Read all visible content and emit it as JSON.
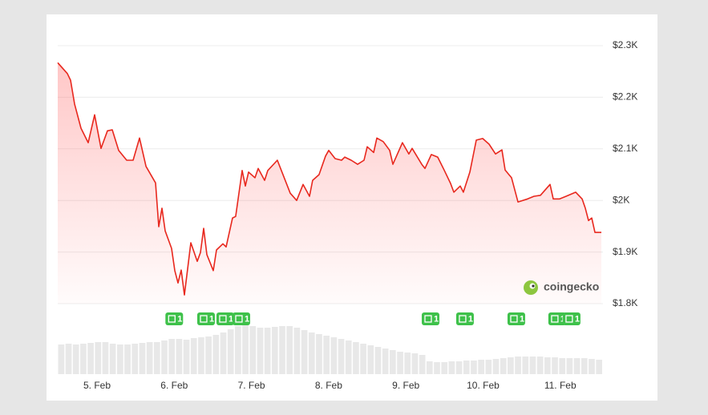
{
  "chart_data": {
    "type": "area",
    "watermark": "coingecko",
    "xlim": [
      4.491,
      11.553
    ],
    "xticks": [
      {
        "value": 5,
        "label": "5. Feb"
      },
      {
        "value": 6,
        "label": "6. Feb"
      },
      {
        "value": 7,
        "label": "7. Feb"
      },
      {
        "value": 8,
        "label": "8. Feb"
      },
      {
        "value": 9,
        "label": "9. Feb"
      },
      {
        "value": 10,
        "label": "10. Feb"
      },
      {
        "value": 11,
        "label": "11. Feb"
      }
    ],
    "ylim": [
      1800,
      2300
    ],
    "yticks": [
      {
        "value": 1800,
        "label": "$1.8K"
      },
      {
        "value": 1900,
        "label": "$1.9K"
      },
      {
        "value": 2000,
        "label": "$2K"
      },
      {
        "value": 2100,
        "label": "$2.1K"
      },
      {
        "value": 2200,
        "label": "$2.2K"
      },
      {
        "value": 2300,
        "label": "$2.3K"
      }
    ],
    "grid": true,
    "series": [
      {
        "color": "#e8281e",
        "x": [
          4.491,
          4.616,
          4.657,
          4.709,
          4.792,
          4.886,
          4.969,
          5.052,
          5.135,
          5.197,
          5.28,
          5.384,
          5.467,
          5.55,
          5.634,
          5.758,
          5.8,
          5.841,
          5.883,
          5.966,
          6.007,
          6.049,
          6.09,
          6.132,
          6.215,
          6.298,
          6.34,
          6.381,
          6.423,
          6.506,
          6.547,
          6.63,
          6.672,
          6.755,
          6.796,
          6.88,
          6.921,
          6.963,
          7.046,
          7.087,
          7.17,
          7.212,
          7.336,
          7.417,
          7.503,
          7.586,
          7.669,
          7.752,
          7.793,
          7.876,
          7.96,
          8.001,
          8.084,
          8.167,
          8.209,
          8.292,
          8.375,
          8.458,
          8.5,
          8.583,
          8.624,
          8.707,
          8.79,
          8.832,
          8.956,
          9.039,
          9.081,
          9.206,
          9.247,
          9.33,
          9.413,
          9.496,
          9.579,
          9.621,
          9.704,
          9.745,
          9.829,
          9.912,
          9.995,
          10.078,
          10.161,
          10.244,
          10.286,
          10.369,
          10.452,
          10.577,
          10.66,
          10.743,
          10.868,
          10.909,
          10.992,
          11.075,
          11.2,
          11.283,
          11.325,
          11.366,
          11.408,
          11.449,
          11.532
        ],
        "values": [
          2267,
          2246,
          2233,
          2187,
          2140,
          2112,
          2166,
          2101,
          2135,
          2137,
          2097,
          2078,
          2078,
          2121,
          2066,
          2034,
          1949,
          1985,
          1941,
          1907,
          1864,
          1840,
          1865,
          1817,
          1918,
          1882,
          1899,
          1946,
          1895,
          1864,
          1904,
          1916,
          1910,
          1966,
          1969,
          2058,
          2028,
          2055,
          2044,
          2062,
          2039,
          2058,
          2078,
          2047,
          2014,
          2000,
          2031,
          2008,
          2039,
          2050,
          2086,
          2097,
          2081,
          2078,
          2084,
          2078,
          2070,
          2078,
          2104,
          2093,
          2121,
          2114,
          2097,
          2070,
          2112,
          2090,
          2101,
          2070,
          2062,
          2089,
          2084,
          2059,
          2033,
          2016,
          2028,
          2016,
          2055,
          2117,
          2120,
          2109,
          2090,
          2098,
          2059,
          2044,
          1997,
          2003,
          2008,
          2010,
          2031,
          2003,
          2003,
          2008,
          2016,
          2003,
          1985,
          1961,
          1966,
          1938,
          1938
        ]
      }
    ],
    "volume_ylim": [
      0,
      65
    ],
    "volume_values": [
      37,
      38,
      37,
      38,
      39,
      40,
      40,
      38,
      37,
      37,
      38,
      39,
      40,
      40,
      42,
      44,
      44,
      43,
      45,
      46,
      47,
      49,
      52,
      56,
      60,
      61,
      60,
      58,
      58,
      59,
      60,
      60,
      58,
      55,
      52,
      50,
      48,
      46,
      44,
      42,
      40,
      38,
      36,
      34,
      32,
      30,
      28,
      27,
      26,
      24,
      16,
      15,
      15,
      16,
      16,
      17,
      17,
      18,
      18,
      19,
      20,
      21,
      22,
      22,
      22,
      22,
      21,
      21,
      20,
      20,
      20,
      20,
      19,
      18
    ],
    "news": [
      {
        "x": 6.0,
        "count": 1
      },
      {
        "x": 6.412,
        "count": 1
      },
      {
        "x": 6.661,
        "count": 1
      },
      {
        "x": 6.869,
        "count": 1
      },
      {
        "x": 9.32,
        "count": 1
      },
      {
        "x": 9.766,
        "count": 1
      },
      {
        "x": 10.431,
        "count": 1
      },
      {
        "x": 10.96,
        "count": 1
      },
      {
        "x": 11.147,
        "count": 1
      }
    ]
  }
}
